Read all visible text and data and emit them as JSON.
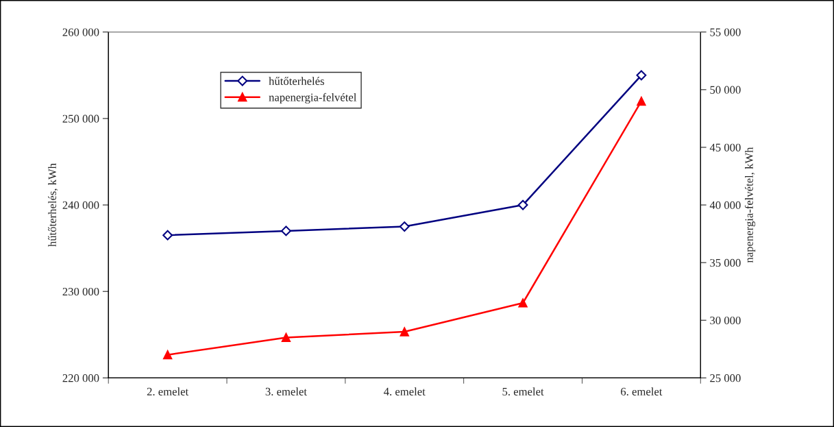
{
  "chart_data": {
    "type": "line",
    "ylabel": "hűtőterhelés, kWh",
    "y2label": "napenergia-felvétel, kWh",
    "categories": [
      "2. emelet",
      "3. emelet",
      "4. emelet",
      "5. emelet",
      "6. emelet"
    ],
    "series": [
      {
        "name": "hűtőterhelés",
        "color": "#000080",
        "marker": "diamond",
        "values": [
          236500,
          237000,
          237500,
          240000,
          255000
        ]
      },
      {
        "name": "napenergia-felvétel",
        "color": "#ff0000",
        "marker": "triangle",
        "axis": "y2",
        "values": [
          27000,
          28500,
          29000,
          31500,
          49000
        ]
      }
    ],
    "ylim": [
      220000,
      260000
    ],
    "yticks": [
      {
        "value": 220000,
        "label": "220 000"
      },
      {
        "value": 230000,
        "label": "230 000"
      },
      {
        "value": 240000,
        "label": "240 000"
      },
      {
        "value": 250000,
        "label": "250 000"
      },
      {
        "value": 260000,
        "label": "260 000"
      }
    ],
    "y2lim": [
      25000,
      55000
    ],
    "y2ticks": [
      {
        "value": 25000,
        "label": "25 000"
      },
      {
        "value": 30000,
        "label": "30 000"
      },
      {
        "value": 35000,
        "label": "35 000"
      },
      {
        "value": 40000,
        "label": "40 000"
      },
      {
        "value": 45000,
        "label": "45 000"
      },
      {
        "value": 50000,
        "label": "50 000"
      },
      {
        "value": 55000,
        "label": "55 000"
      }
    ],
    "grid": false,
    "legend": "top left",
    "line_style": "solid"
  }
}
